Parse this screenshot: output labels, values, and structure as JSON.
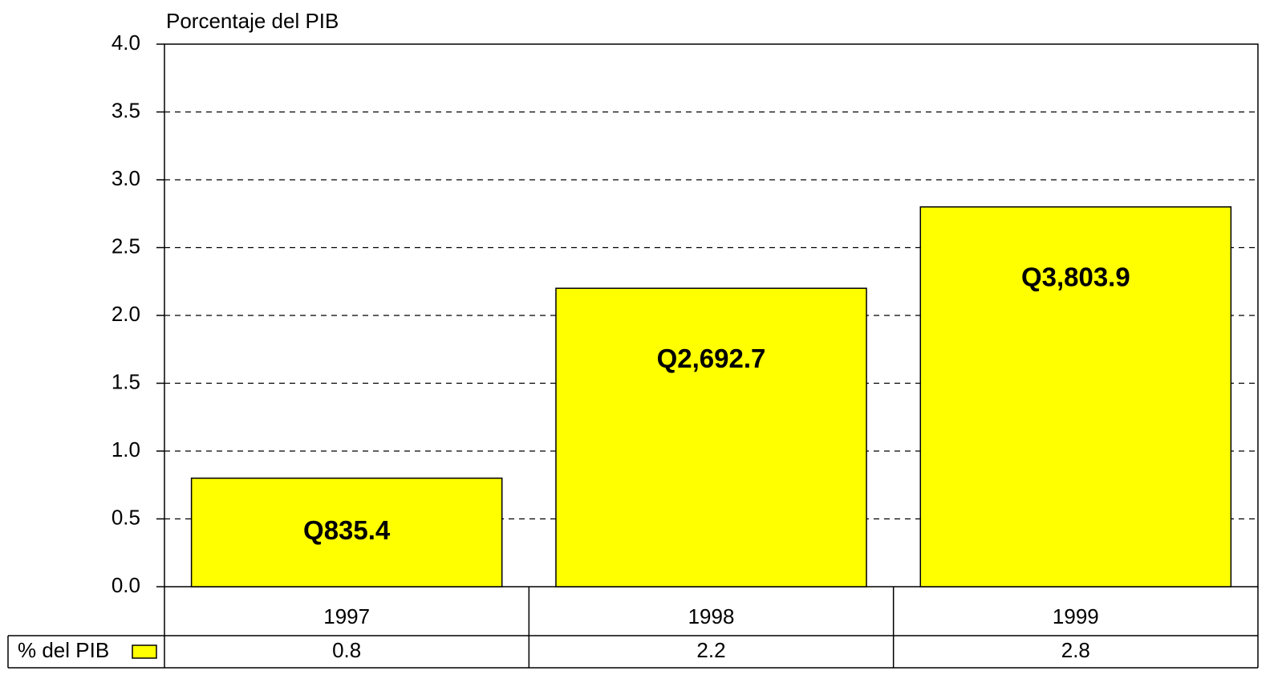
{
  "chart_data": {
    "type": "bar",
    "y_axis_label": "Porcentaje del PIB",
    "categories": [
      "1997",
      "1998",
      "1999"
    ],
    "series": [
      {
        "name": "% del PIB",
        "color": "#ffff00",
        "values": [
          0.8,
          2.2,
          2.8
        ]
      }
    ],
    "annotations": [
      "Q835.4",
      "Q2,692.7",
      "Q3,803.9"
    ],
    "ylim": [
      0,
      4
    ],
    "yticks": [
      {
        "value": 0,
        "label": "0.0"
      },
      {
        "value": 0.5,
        "label": "0.5"
      },
      {
        "value": 1,
        "label": "1.0"
      },
      {
        "value": 1.5,
        "label": "1.5"
      },
      {
        "value": 2,
        "label": "2.0"
      },
      {
        "value": 2.5,
        "label": "2.5"
      },
      {
        "value": 3,
        "label": "3.0"
      },
      {
        "value": 3.5,
        "label": "3.5"
      },
      {
        "value": 4,
        "label": "4.0"
      }
    ],
    "grid": true
  }
}
